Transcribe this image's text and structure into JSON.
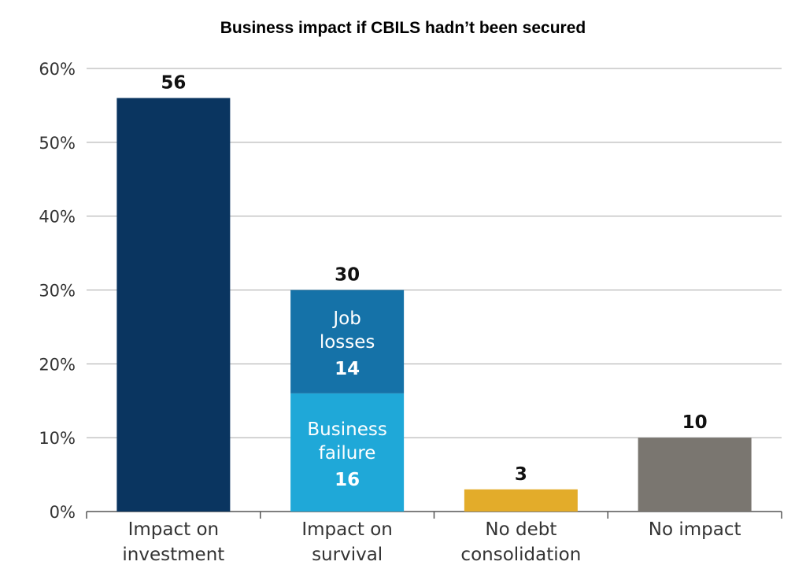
{
  "chart_data": {
    "type": "bar",
    "title": "Business impact if CBILS hadn’t been secured",
    "y_tick_labels": [
      "0%",
      "10%",
      "20%",
      "30%",
      "40%",
      "50%",
      "60%"
    ],
    "ylim": [
      0,
      60
    ],
    "grid": true,
    "categories": [
      [
        "Impact on",
        "investment"
      ],
      [
        "Impact on",
        "survival"
      ],
      [
        "No debt",
        "consolidation"
      ],
      [
        "No impact"
      ]
    ],
    "bars": [
      {
        "total": 56,
        "total_label": "56",
        "color": "#0a3560",
        "segments": []
      },
      {
        "total": 30,
        "total_label": "30",
        "segments": [
          {
            "value": 16,
            "label_lines": [
              "Business",
              "failure"
            ],
            "value_label": "16",
            "color": "#1fa8d8"
          },
          {
            "value": 14,
            "label_lines": [
              "Job",
              "losses"
            ],
            "value_label": "14",
            "color": "#1572a8"
          }
        ]
      },
      {
        "total": 3,
        "total_label": "3",
        "color": "#e3ac2a",
        "segments": []
      },
      {
        "total": 10,
        "total_label": "10",
        "color": "#7a7670",
        "segments": []
      }
    ]
  }
}
